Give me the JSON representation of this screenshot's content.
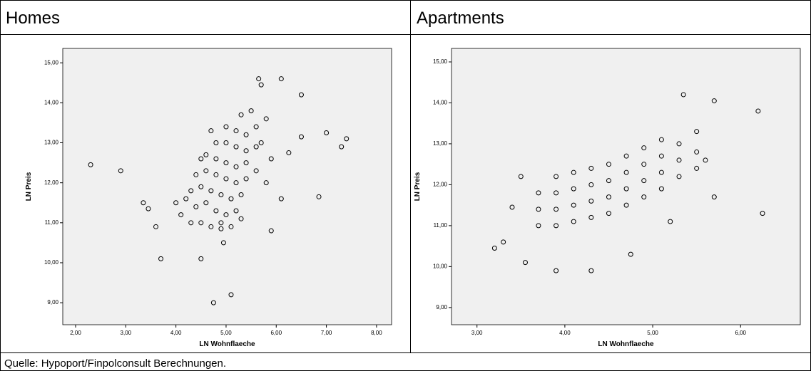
{
  "chart_data": [
    {
      "type": "scatter",
      "title": "Homes",
      "xlabel": "LN Wohnflaeche",
      "ylabel": "LN Preis",
      "xlim": [
        1.744,
        8.3
      ],
      "ylim": [
        8.45,
        15.36
      ],
      "xticks": [
        {
          "value": 2,
          "label": "2,00"
        },
        {
          "value": 3,
          "label": "3,00"
        },
        {
          "value": 4,
          "label": "4,00"
        },
        {
          "value": 5,
          "label": "5,00"
        },
        {
          "value": 6,
          "label": "6,00"
        },
        {
          "value": 7,
          "label": "7,00"
        },
        {
          "value": 8,
          "label": "8,00"
        }
      ],
      "yticks": [
        {
          "value": 9,
          "label": "9,00"
        },
        {
          "value": 10,
          "label": "10,00"
        },
        {
          "value": 11,
          "label": "11,00"
        },
        {
          "value": 12,
          "label": "12,00"
        },
        {
          "value": 13,
          "label": "13,00"
        },
        {
          "value": 14,
          "label": "14,00"
        },
        {
          "value": 15,
          "label": "15,00"
        }
      ],
      "color": "#000000",
      "x": [
        2.3,
        2.9,
        3.35,
        3.45,
        3.6,
        3.7,
        4.5,
        4.75,
        5.1,
        4.95,
        5.9,
        6.5,
        6.5,
        7.0,
        7.3,
        7.4,
        6.85,
        6.1,
        5.65,
        5.7,
        6.25,
        6.1,
        4.3,
        4.5,
        4.7,
        4.9,
        5.1,
        4.4,
        4.6,
        4.8,
        5.0,
        5.2,
        4.3,
        4.5,
        4.7,
        4.9,
        5.1,
        5.3,
        4.4,
        4.6,
        4.8,
        5.0,
        5.2,
        5.4,
        4.6,
        4.8,
        5.0,
        5.2,
        5.4,
        5.6,
        4.8,
        5.0,
        5.2,
        5.4,
        5.6,
        5.0,
        5.2,
        5.4,
        5.6,
        5.3,
        5.5,
        4.2,
        4.1,
        4.0,
        5.8,
        5.9,
        5.7,
        4.9,
        5.3,
        4.5,
        4.7,
        5.8
      ],
      "values": [
        12.45,
        12.3,
        11.5,
        11.35,
        10.9,
        10.1,
        10.1,
        9.0,
        9.2,
        10.5,
        10.8,
        13.15,
        14.2,
        13.25,
        12.9,
        13.1,
        11.65,
        14.6,
        14.6,
        14.45,
        12.75,
        11.6,
        11.0,
        11.0,
        10.9,
        10.85,
        10.9,
        11.4,
        11.5,
        11.3,
        11.2,
        11.3,
        11.8,
        11.9,
        11.8,
        11.7,
        11.6,
        11.7,
        12.2,
        12.3,
        12.2,
        12.1,
        12.0,
        12.1,
        12.7,
        12.6,
        12.5,
        12.4,
        12.5,
        12.3,
        13.0,
        13.0,
        12.9,
        12.8,
        12.9,
        13.4,
        13.3,
        13.2,
        13.4,
        13.7,
        13.8,
        11.6,
        11.2,
        11.5,
        12.0,
        12.6,
        13.0,
        11.0,
        11.1,
        12.6,
        13.3,
        13.6
      ]
    },
    {
      "type": "scatter",
      "title": "Apartments",
      "xlabel": "LN Wohnflaeche",
      "ylabel": "LN Preis",
      "xlim": [
        2.71,
        6.68
      ],
      "ylim": [
        8.58,
        15.33
      ],
      "xticks": [
        {
          "value": 3,
          "label": "3,00"
        },
        {
          "value": 4,
          "label": "4,00"
        },
        {
          "value": 5,
          "label": "5,00"
        },
        {
          "value": 6,
          "label": "6,00"
        }
      ],
      "yticks": [
        {
          "value": 9,
          "label": "9,00"
        },
        {
          "value": 10,
          "label": "10,00"
        },
        {
          "value": 11,
          "label": "11,00"
        },
        {
          "value": 12,
          "label": "12,00"
        },
        {
          "value": 13,
          "label": "13,00"
        },
        {
          "value": 14,
          "label": "14,00"
        },
        {
          "value": 15,
          "label": "15,00"
        }
      ],
      "color": "#000000",
      "x": [
        3.2,
        3.3,
        3.5,
        3.4,
        3.55,
        3.9,
        4.3,
        4.75,
        6.2,
        6.25,
        5.7,
        5.35,
        5.7,
        5.6,
        5.2,
        3.7,
        3.7,
        3.7,
        3.9,
        3.9,
        3.9,
        3.9,
        4.1,
        4.1,
        4.1,
        4.1,
        4.3,
        4.3,
        4.3,
        4.3,
        4.5,
        4.5,
        4.5,
        4.5,
        4.7,
        4.7,
        4.7,
        4.7,
        4.9,
        4.9,
        4.9,
        4.9,
        5.1,
        5.1,
        5.1,
        5.1,
        5.3,
        5.3,
        5.3,
        5.5,
        5.5,
        5.5
      ],
      "values": [
        10.45,
        10.6,
        12.2,
        11.45,
        10.1,
        9.9,
        9.9,
        10.3,
        13.8,
        11.3,
        11.7,
        14.2,
        14.05,
        12.6,
        11.1,
        11.0,
        11.4,
        11.8,
        11.0,
        11.4,
        11.8,
        12.2,
        11.1,
        11.5,
        11.9,
        12.3,
        11.2,
        11.6,
        12.0,
        12.4,
        11.3,
        11.7,
        12.1,
        12.5,
        11.5,
        11.9,
        12.3,
        12.7,
        11.7,
        12.1,
        12.5,
        12.9,
        11.9,
        12.3,
        12.7,
        13.1,
        12.2,
        12.6,
        13.0,
        12.4,
        12.8,
        13.3
      ]
    }
  ],
  "source": "Quelle: Hypoport/Finpolconsult Berechnungen."
}
